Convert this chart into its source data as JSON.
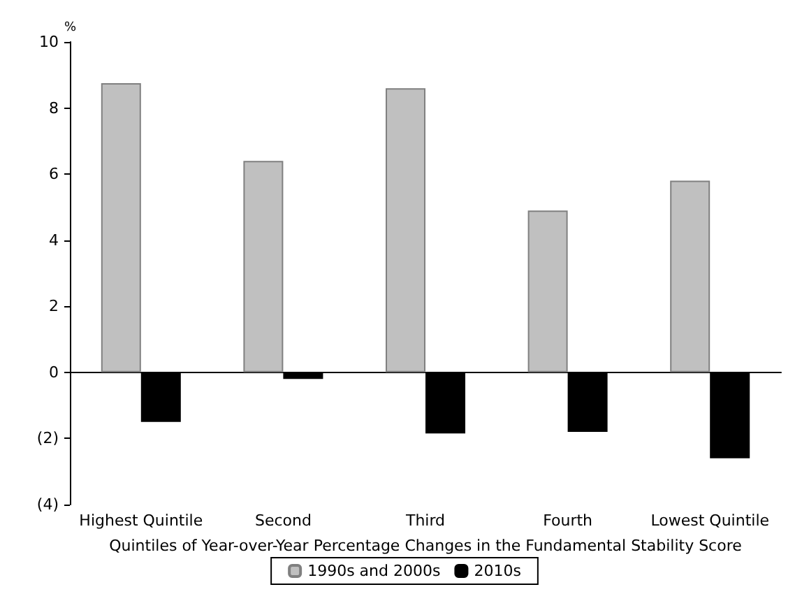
{
  "chart_data": {
    "type": "bar",
    "xlabel": "Quintiles of Year-over-Year Percentage Changes in the Fundamental Stability Score",
    "ylabel": "%",
    "categories": [
      "Highest Quintile",
      "Second",
      "Third",
      "Fourth",
      "Lowest Quintile"
    ],
    "series": [
      {
        "name": "1990s and 2000s",
        "color": "#c0c0c0",
        "values": [
          8.75,
          6.4,
          8.6,
          4.9,
          5.8
        ]
      },
      {
        "name": "2010s",
        "color": "#000000",
        "values": [
          -1.5,
          -0.2,
          -1.85,
          -1.8,
          -2.6
        ]
      }
    ],
    "ylim": [
      -4,
      10
    ],
    "yticks": [
      {
        "value": -4,
        "label": "(4)"
      },
      {
        "value": -2,
        "label": "(2)"
      },
      0,
      2,
      4,
      6,
      8,
      10
    ],
    "legend": "bottom"
  }
}
